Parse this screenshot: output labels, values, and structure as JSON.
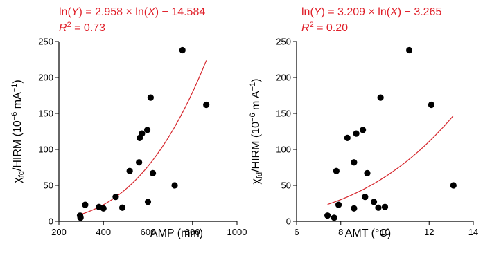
{
  "colors": {
    "fit": "#d6262c",
    "equation": "#e0202a",
    "points": "#000000"
  },
  "chart_data": [
    {
      "type": "scatter",
      "equation": {
        "line1": {
          "a": "ln(",
          "b": "Y",
          "c": ") = 2.958 × ln(",
          "d": "X",
          "e": ") − 14.584"
        },
        "line2": {
          "a": "R",
          "b": "2",
          "c": " = 0.73"
        }
      },
      "xlabel": "AMP (mm)",
      "ylabel": {
        "a": "χ",
        "b": "fd",
        "c": "/HIRM (10",
        "d": "−6",
        "e": " mA",
        "f": "−1",
        "g": ")"
      },
      "xlim": [
        200,
        1000
      ],
      "ylim": [
        0,
        250
      ],
      "xticks": [
        200,
        400,
        600,
        800,
        1000
      ],
      "yticks": [
        0,
        50,
        100,
        150,
        200,
        250
      ],
      "fit": {
        "kind": "power",
        "slope": 2.958,
        "intercept": -14.584,
        "x_range": [
          295,
          862
        ]
      },
      "points": [
        {
          "x": 295,
          "y": 8
        },
        {
          "x": 297,
          "y": 5
        },
        {
          "x": 318,
          "y": 23
        },
        {
          "x": 380,
          "y": 20
        },
        {
          "x": 400,
          "y": 18
        },
        {
          "x": 455,
          "y": 34
        },
        {
          "x": 485,
          "y": 19
        },
        {
          "x": 518,
          "y": 70
        },
        {
          "x": 560,
          "y": 82
        },
        {
          "x": 563,
          "y": 116
        },
        {
          "x": 573,
          "y": 122
        },
        {
          "x": 597,
          "y": 127
        },
        {
          "x": 600,
          "y": 27
        },
        {
          "x": 612,
          "y": 172
        },
        {
          "x": 622,
          "y": 67
        },
        {
          "x": 720,
          "y": 50
        },
        {
          "x": 755,
          "y": 238
        },
        {
          "x": 862,
          "y": 162
        }
      ]
    },
    {
      "type": "scatter",
      "equation": {
        "line1": {
          "a": "ln(",
          "b": "Y",
          "c": ") = 3.209 × ln(",
          "d": "X",
          "e": ") − 3.265"
        },
        "line2": {
          "a": "R",
          "b": "2",
          "c": " = 0.20"
        }
      },
      "xlabel": "AMT (°C)",
      "ylabel": {
        "a": "χ",
        "b": "fd",
        "c": "/HIRM (10",
        "d": "−6",
        "e": " m A",
        "f": "−1",
        "g": ")"
      },
      "xlim": [
        6,
        14
      ],
      "ylim": [
        0,
        250
      ],
      "xticks": [
        6,
        8,
        10,
        12,
        14
      ],
      "yticks": [
        0,
        50,
        100,
        150,
        200,
        250
      ],
      "fit": {
        "kind": "power",
        "slope": 3.209,
        "intercept": -3.265,
        "x_range": [
          7.4,
          13.1
        ]
      },
      "points": [
        {
          "x": 7.4,
          "y": 8
        },
        {
          "x": 7.7,
          "y": 5
        },
        {
          "x": 7.8,
          "y": 70
        },
        {
          "x": 7.9,
          "y": 23
        },
        {
          "x": 8.3,
          "y": 116
        },
        {
          "x": 8.6,
          "y": 82
        },
        {
          "x": 8.6,
          "y": 18
        },
        {
          "x": 8.7,
          "y": 122
        },
        {
          "x": 9.0,
          "y": 127
        },
        {
          "x": 9.1,
          "y": 34
        },
        {
          "x": 9.2,
          "y": 67
        },
        {
          "x": 9.5,
          "y": 27
        },
        {
          "x": 9.7,
          "y": 19
        },
        {
          "x": 9.8,
          "y": 172
        },
        {
          "x": 10.0,
          "y": 20
        },
        {
          "x": 11.1,
          "y": 238
        },
        {
          "x": 12.1,
          "y": 162
        },
        {
          "x": 13.1,
          "y": 50
        }
      ]
    }
  ]
}
